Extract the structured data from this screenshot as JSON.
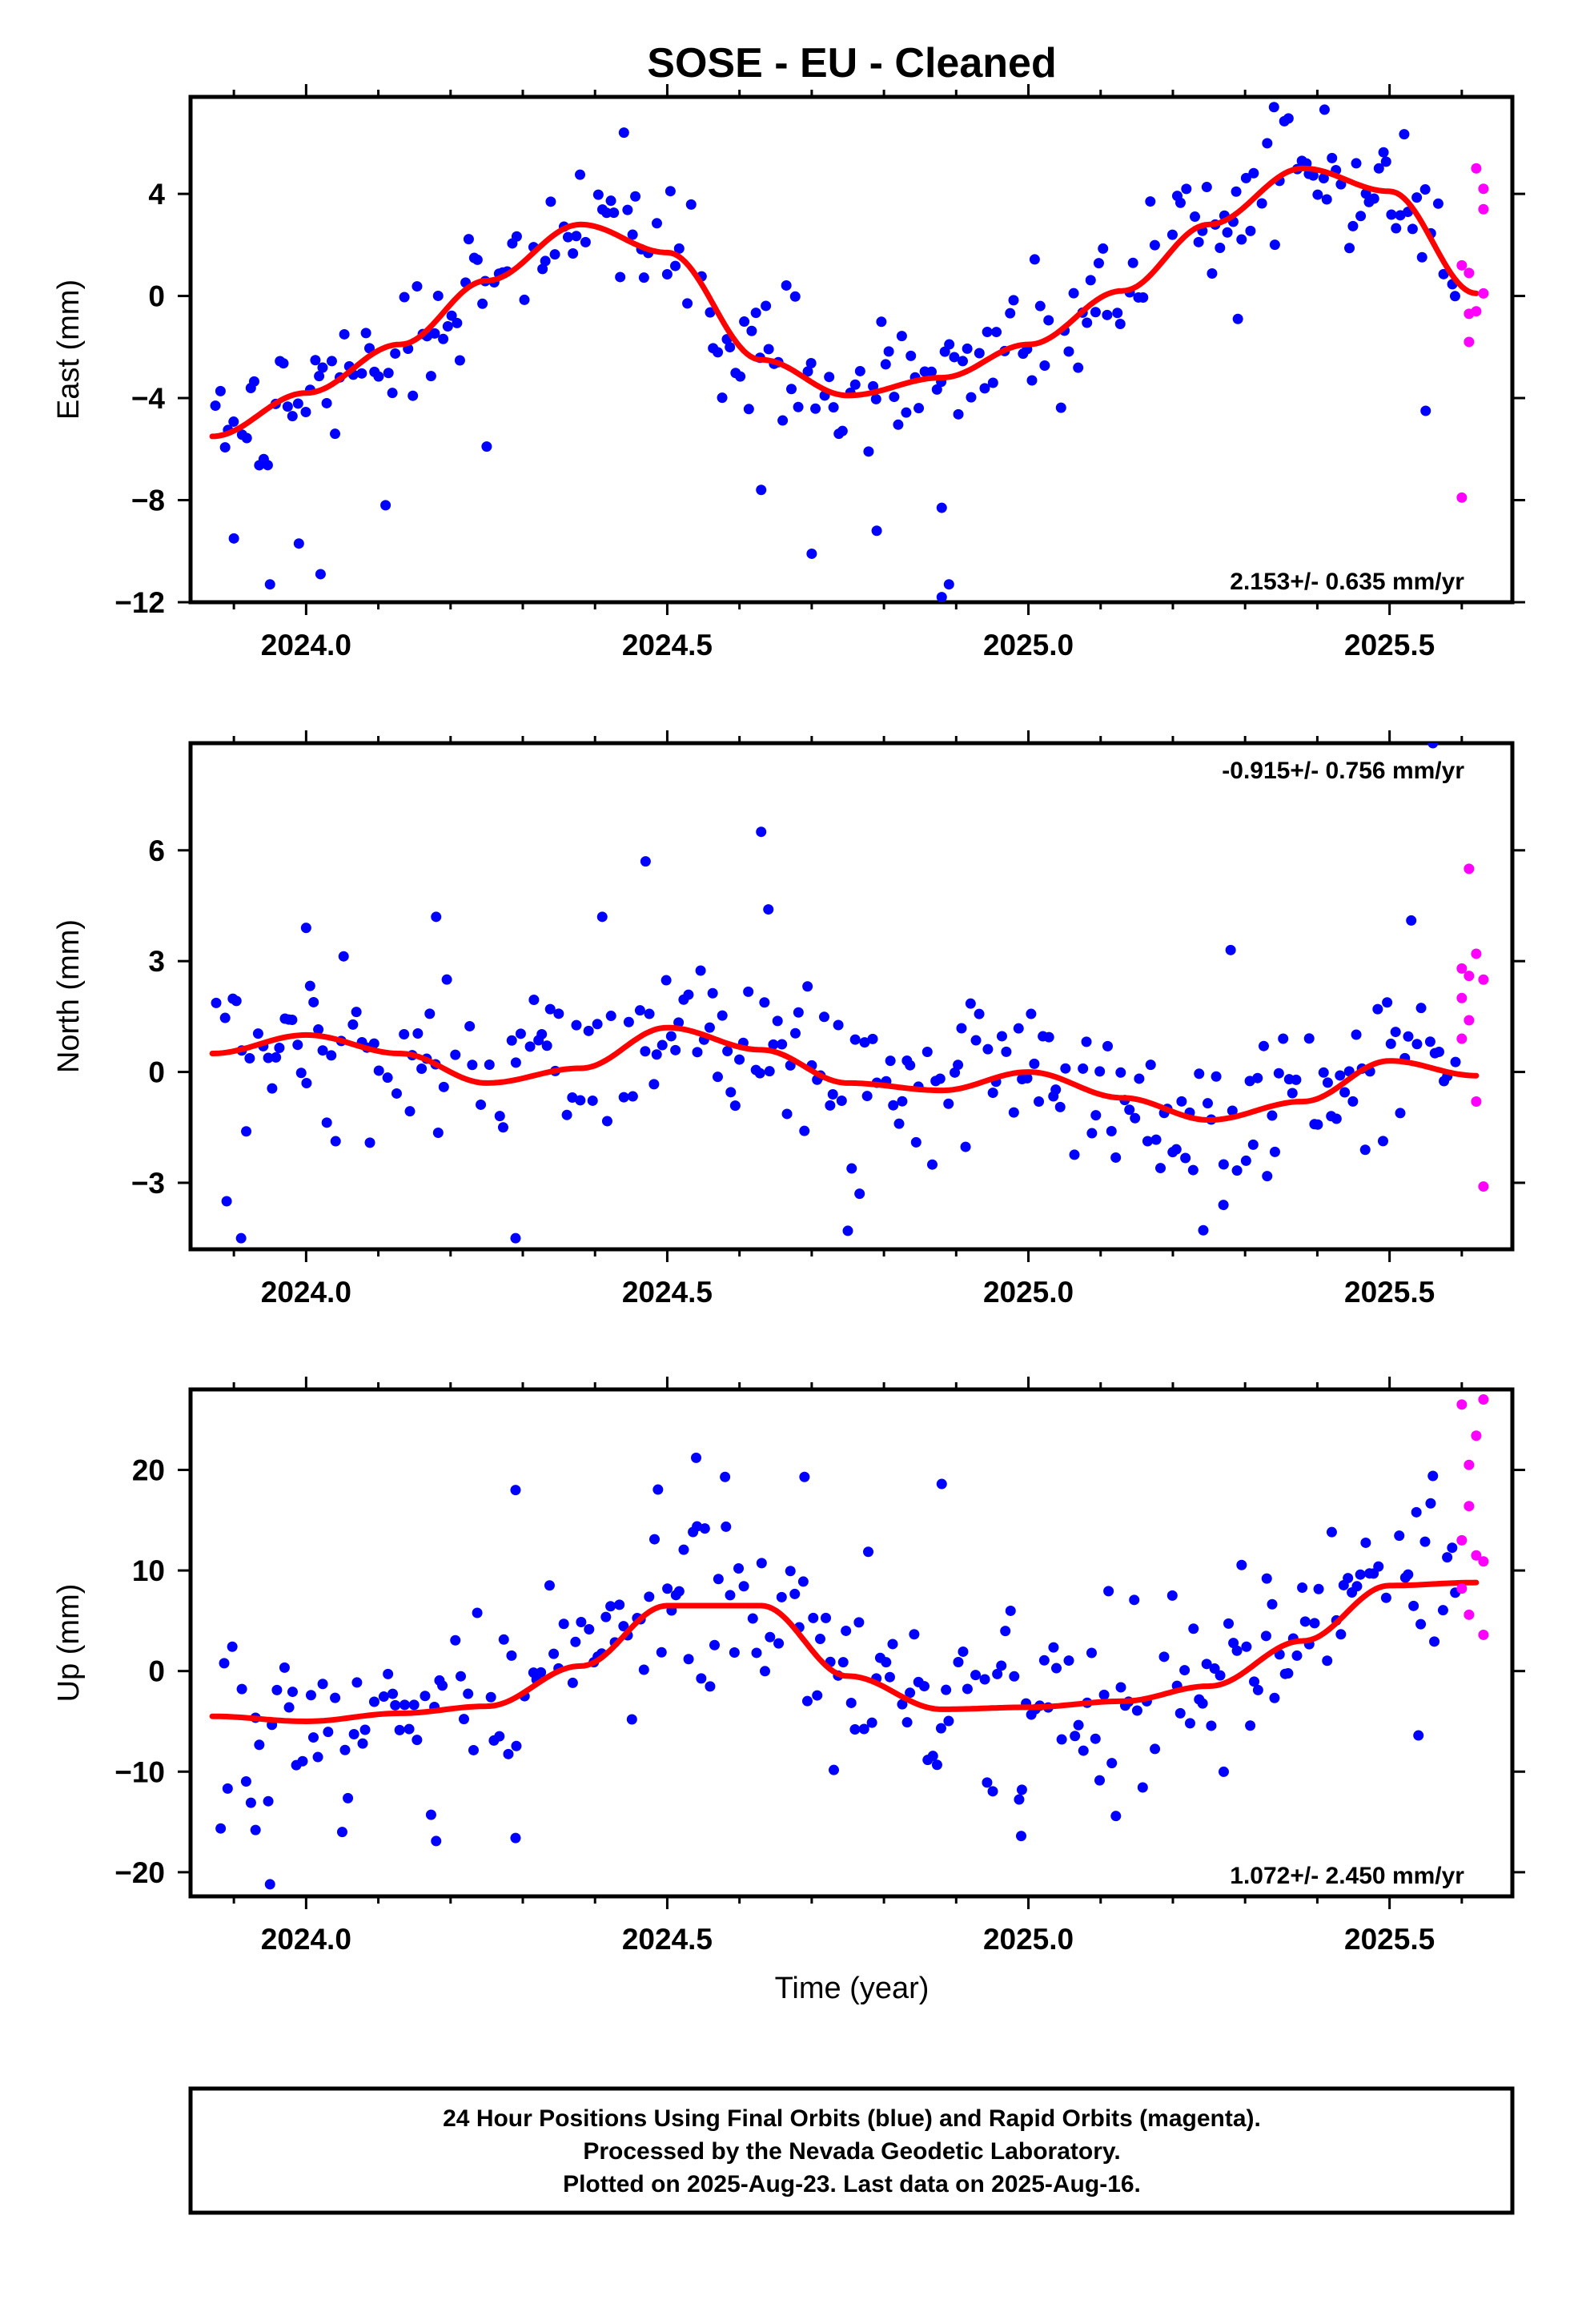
{
  "title": "SOSE  - EU - Cleaned",
  "xlabel": "Time (year)",
  "footer": {
    "line1": "24 Hour Positions Using Final Orbits (blue) and Rapid Orbits (magenta).",
    "line2": "Processed by the Nevada Geodetic Laboratory.",
    "line3": "Plotted on 2025-Aug-23. Last data on 2025-Aug-16."
  },
  "colors": {
    "final": "#0000ff",
    "rapid": "#ff00ff",
    "fit": "#ff0000",
    "frame": "#000000"
  },
  "chart_data": [
    {
      "type": "scatter",
      "name": "east",
      "ylabel": "East (mm)",
      "rate_text": "2.153+/- 0.635 mm/yr",
      "rate_position": "bottom-right",
      "xlim": [
        2023.84,
        2025.67
      ],
      "ylim": [
        -12,
        7.8
      ],
      "xticks": [
        2024.0,
        2024.5,
        2025.0,
        2025.5
      ],
      "xtick_labels": [
        "2024.0",
        "2024.5",
        "2025.0",
        "2025.5"
      ],
      "yticks": [
        -12,
        -8,
        -4,
        0,
        4
      ],
      "ytick_labels": [
        "−12",
        "−8",
        "−4",
        "0",
        "4"
      ],
      "fit_curve": {
        "x": [
          2023.87,
          2024.0,
          2024.13,
          2024.25,
          2024.38,
          2024.5,
          2024.63,
          2024.75,
          2024.88,
          2025.0,
          2025.13,
          2025.25,
          2025.38,
          2025.5,
          2025.62
        ],
        "y": [
          -5.5,
          -3.8,
          -1.9,
          0.6,
          2.8,
          1.7,
          -2.5,
          -3.9,
          -3.2,
          -1.9,
          0.2,
          2.8,
          5.0,
          4.1,
          0.1
        ]
      },
      "outliers": [
        {
          "x": 2023.9,
          "y": -9.5
        },
        {
          "x": 2023.95,
          "y": -11.3
        },
        {
          "x": 2024.02,
          "y": -10.9
        },
        {
          "x": 2023.99,
          "y": -9.7
        },
        {
          "x": 2024.7,
          "y": -10.1
        },
        {
          "x": 2024.79,
          "y": -9.2
        },
        {
          "x": 2024.88,
          "y": -8.3
        },
        {
          "x": 2024.89,
          "y": -11.3
        },
        {
          "x": 2024.88,
          "y": -11.8
        },
        {
          "x": 2024.63,
          "y": -7.6
        },
        {
          "x": 2024.11,
          "y": -8.2
        },
        {
          "x": 2024.25,
          "y": -5.9
        },
        {
          "x": 2025.29,
          "y": -0.9
        },
        {
          "x": 2025.55,
          "y": -4.5
        },
        {
          "x": 2024.44,
          "y": 6.4
        },
        {
          "x": 2025.34,
          "y": 7.4
        },
        {
          "x": 2025.41,
          "y": 7.3
        }
      ],
      "rapid_points": [
        {
          "x": 2025.6,
          "y": -7.9
        },
        {
          "x": 2025.61,
          "y": -1.8
        },
        {
          "x": 2025.61,
          "y": -0.7
        },
        {
          "x": 2025.62,
          "y": -0.6
        },
        {
          "x": 2025.6,
          "y": 1.2
        },
        {
          "x": 2025.61,
          "y": 0.9
        },
        {
          "x": 2025.62,
          "y": 5.0
        },
        {
          "x": 2025.63,
          "y": 4.2
        },
        {
          "x": 2025.63,
          "y": 3.4
        },
        {
          "x": 2025.63,
          "y": 0.1
        }
      ],
      "final_scatter_sd": 1.25
    },
    {
      "type": "scatter",
      "name": "north",
      "ylabel": "North (mm)",
      "rate_text": "-0.915+/- 0.756 mm/yr",
      "rate_position": "top-right",
      "xlim": [
        2023.84,
        2025.67
      ],
      "ylim": [
        -4.8,
        8.9
      ],
      "xticks": [
        2024.0,
        2024.5,
        2025.0,
        2025.5
      ],
      "xtick_labels": [
        "2024.0",
        "2024.5",
        "2025.0",
        "2025.5"
      ],
      "yticks": [
        -3,
        0,
        3,
        6
      ],
      "ytick_labels": [
        "−3",
        "0",
        "3",
        "6"
      ],
      "fit_curve": {
        "x": [
          2023.87,
          2024.0,
          2024.13,
          2024.25,
          2024.38,
          2024.5,
          2024.63,
          2024.75,
          2024.88,
          2025.0,
          2025.13,
          2025.25,
          2025.38,
          2025.5,
          2025.62
        ],
        "y": [
          0.5,
          1.0,
          0.5,
          -0.3,
          0.1,
          1.2,
          0.6,
          -0.3,
          -0.5,
          0.0,
          -0.7,
          -1.3,
          -0.8,
          0.3,
          -0.1
        ]
      },
      "outliers": [
        {
          "x": 2023.89,
          "y": -3.5
        },
        {
          "x": 2023.91,
          "y": -4.5
        },
        {
          "x": 2024.29,
          "y": -4.5
        },
        {
          "x": 2024.75,
          "y": -4.3
        },
        {
          "x": 2024.47,
          "y": 5.7
        },
        {
          "x": 2024.63,
          "y": 6.5
        },
        {
          "x": 2024.64,
          "y": 4.4
        },
        {
          "x": 2024.41,
          "y": 4.2
        },
        {
          "x": 2025.56,
          "y": 8.9
        },
        {
          "x": 2025.53,
          "y": 4.1
        },
        {
          "x": 2025.28,
          "y": 3.3
        },
        {
          "x": 2025.27,
          "y": -3.6
        },
        {
          "x": 2024.0,
          "y": 3.9
        },
        {
          "x": 2024.18,
          "y": 4.2
        }
      ],
      "rapid_points": [
        {
          "x": 2025.6,
          "y": 2.8
        },
        {
          "x": 2025.61,
          "y": 5.5
        },
        {
          "x": 2025.61,
          "y": 2.6
        },
        {
          "x": 2025.62,
          "y": 3.2
        },
        {
          "x": 2025.6,
          "y": 2.0
        },
        {
          "x": 2025.61,
          "y": 1.4
        },
        {
          "x": 2025.62,
          "y": -0.8
        },
        {
          "x": 2025.63,
          "y": -3.1
        },
        {
          "x": 2025.63,
          "y": 2.5
        },
        {
          "x": 2025.6,
          "y": 0.9
        }
      ],
      "final_scatter_sd": 1.05
    },
    {
      "type": "scatter",
      "name": "up",
      "ylabel": "Up (mm)",
      "rate_text": "1.072+/- 2.450 mm/yr",
      "rate_position": "bottom-right",
      "xlim": [
        2023.84,
        2025.67
      ],
      "ylim": [
        -22.4,
        28
      ],
      "xticks": [
        2024.0,
        2024.5,
        2025.0,
        2025.5
      ],
      "xtick_labels": [
        "2024.0",
        "2024.5",
        "2025.0",
        "2025.5"
      ],
      "yticks": [
        -20,
        -10,
        0,
        10,
        20
      ],
      "ytick_labels": [
        "−20",
        "−10",
        "0",
        "10",
        "20"
      ],
      "fit_curve": {
        "x": [
          2023.87,
          2024.0,
          2024.13,
          2024.25,
          2024.38,
          2024.5,
          2024.63,
          2024.75,
          2024.88,
          2025.0,
          2025.13,
          2025.25,
          2025.38,
          2025.5,
          2025.62
        ],
        "y": [
          -4.5,
          -5.0,
          -4.2,
          -3.5,
          0.5,
          6.5,
          6.5,
          -0.5,
          -3.8,
          -3.6,
          -3.0,
          -1.5,
          3.0,
          8.5,
          8.8
        ]
      },
      "outliers": [
        {
          "x": 2023.95,
          "y": -21.2
        },
        {
          "x": 2023.93,
          "y": -15.8
        },
        {
          "x": 2024.18,
          "y": -16.9
        },
        {
          "x": 2024.29,
          "y": -16.6
        },
        {
          "x": 2024.99,
          "y": -16.4
        },
        {
          "x": 2024.29,
          "y": 18.0
        },
        {
          "x": 2024.54,
          "y": 21.2
        },
        {
          "x": 2024.58,
          "y": 19.3
        },
        {
          "x": 2024.69,
          "y": 19.3
        },
        {
          "x": 2024.88,
          "y": 18.6
        },
        {
          "x": 2025.56,
          "y": 19.4
        },
        {
          "x": 2025.54,
          "y": -6.4
        },
        {
          "x": 2025.33,
          "y": 9.2
        },
        {
          "x": 2024.05,
          "y": -16.0
        }
      ],
      "rapid_points": [
        {
          "x": 2025.6,
          "y": 26.5
        },
        {
          "x": 2025.6,
          "y": 13.0
        },
        {
          "x": 2025.61,
          "y": 20.5
        },
        {
          "x": 2025.61,
          "y": 16.4
        },
        {
          "x": 2025.62,
          "y": 23.4
        },
        {
          "x": 2025.62,
          "y": 11.5
        },
        {
          "x": 2025.63,
          "y": 27.0
        },
        {
          "x": 2025.63,
          "y": 10.9
        },
        {
          "x": 2025.63,
          "y": 3.6
        },
        {
          "x": 2025.61,
          "y": 5.6
        },
        {
          "x": 2025.6,
          "y": 8.2
        }
      ],
      "final_scatter_sd": 4.6
    }
  ]
}
